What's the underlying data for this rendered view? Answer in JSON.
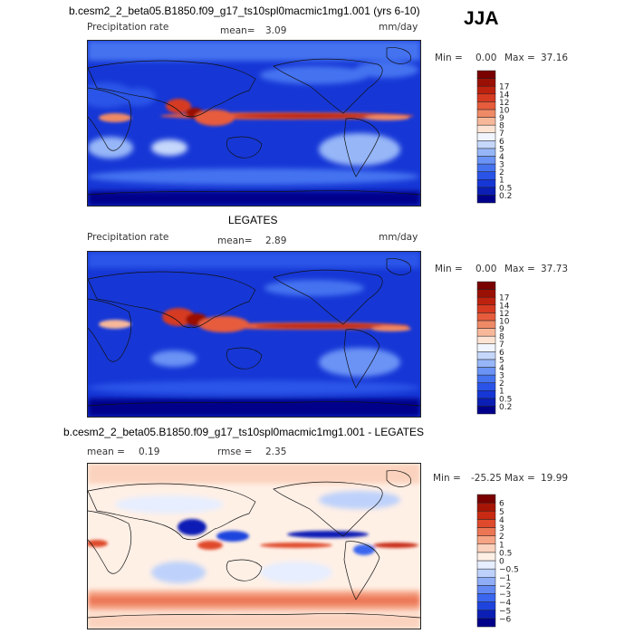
{
  "season": "JJA",
  "palettes": {
    "precip": [
      "#00008b",
      "#0b1fb5",
      "#1637d6",
      "#2a54e8",
      "#4573f0",
      "#6a93f5",
      "#96b6f8",
      "#c5d7fb",
      "#f1f5ff",
      "#fde3d4",
      "#f7b89a",
      "#ef8a66",
      "#e65c3c",
      "#d63b22",
      "#bd220f",
      "#9a1005",
      "#7a0000"
    ],
    "diff": [
      "#00008b",
      "#0b1fb5",
      "#1f44de",
      "#3b66ef",
      "#6288f3",
      "#8fadf7",
      "#bdd1fb",
      "#e6eeff",
      "#fff0e6",
      "#fbd2bd",
      "#f5a485",
      "#ec7654",
      "#df4a2c",
      "#c82a13",
      "#a61505",
      "#7a0000"
    ]
  },
  "chart_data": [
    {
      "type": "heatmap",
      "title": "b.cesm2_2_beta05.B1850.f09_g17_ts10spl0macmic1mg1.001 (yrs 6-10)",
      "field_label": "Precipitation rate",
      "mean_label": "mean=",
      "mean": "3.09",
      "units": "mm/day",
      "min_label": "Min =",
      "min": "0.00",
      "max_label": "Max =",
      "max": "37.16",
      "levels": [
        "0.2",
        "0.5",
        "1",
        "2",
        "3",
        "4",
        "5",
        "6",
        "7",
        "8",
        "9",
        "10",
        "12",
        "14",
        "17"
      ]
    },
    {
      "type": "heatmap",
      "title": "LEGATES",
      "field_label": "Precipitation rate",
      "mean_label": "mean=",
      "mean": "2.89",
      "units": "mm/day",
      "min_label": "Min =",
      "min": "0.00",
      "max_label": "Max =",
      "max": "37.73",
      "levels": [
        "0.2",
        "0.5",
        "1",
        "2",
        "3",
        "4",
        "5",
        "6",
        "7",
        "8",
        "9",
        "10",
        "12",
        "14",
        "17"
      ]
    },
    {
      "type": "heatmap",
      "title": "b.cesm2_2_beta05.B1850.f09_g17_ts10spl0macmic1mg1.001 - LEGATES",
      "mean_label": "mean =",
      "mean": "0.19",
      "rmse_label": "rmse =",
      "rmse": "2.35",
      "min_label": "Min =",
      "min": "-25.25",
      "max_label": "Max =",
      "max": "19.99",
      "levels": [
        "−6",
        "−5",
        "−4",
        "−3",
        "−2",
        "−1",
        "−0.5",
        "0",
        "0.5",
        "1",
        "2",
        "3",
        "4",
        "5",
        "6"
      ]
    }
  ]
}
